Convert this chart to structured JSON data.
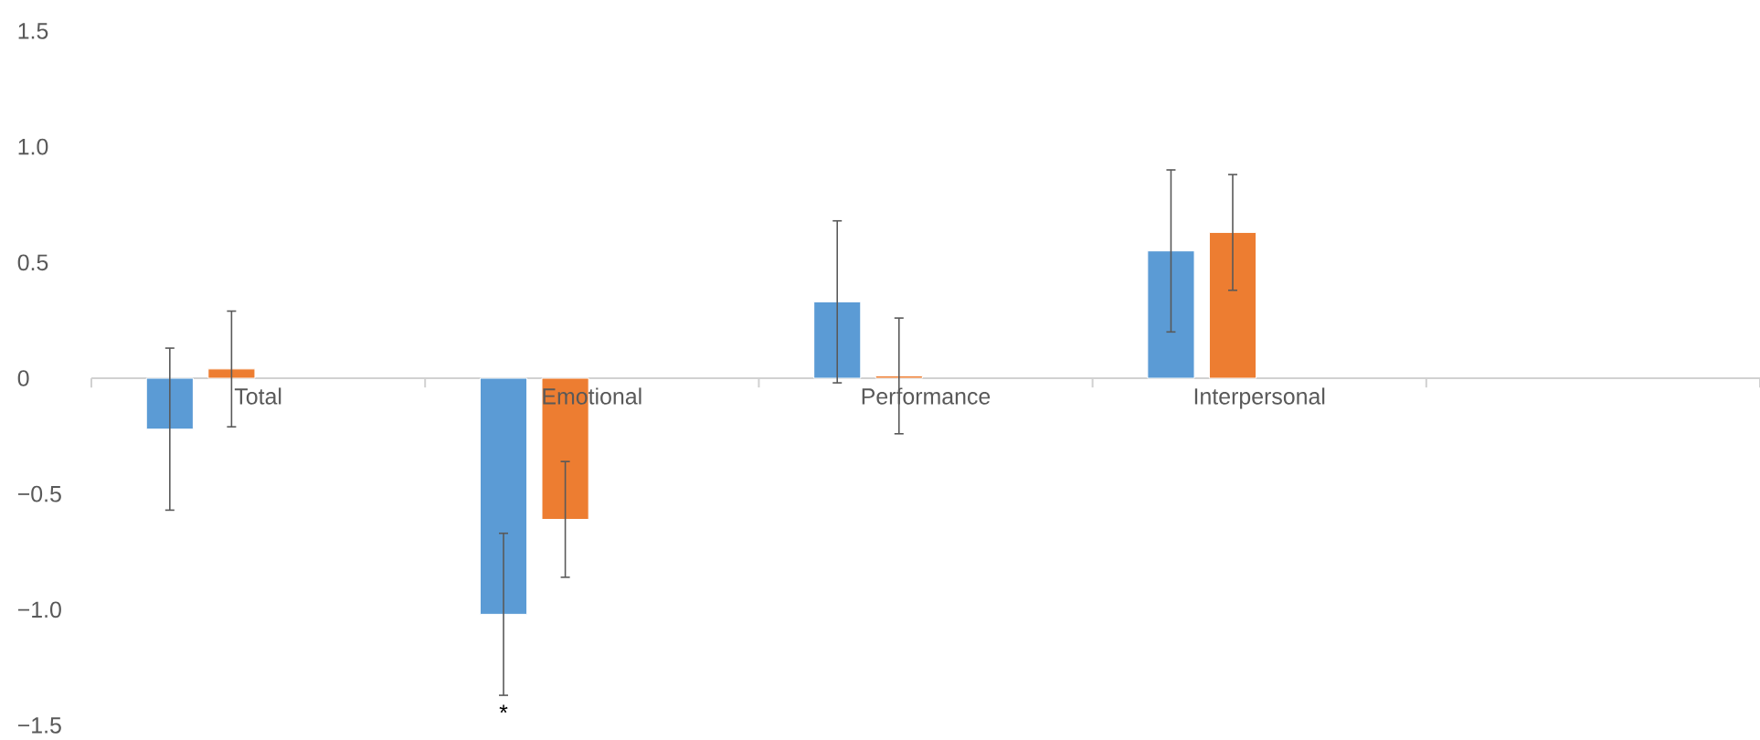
{
  "chart_data": {
    "type": "bar",
    "categories": [
      "Total",
      "Emotional",
      "Performance",
      "Interpersonal",
      null
    ],
    "series": [
      {
        "color": "#5b9bd5",
        "values": [
          -0.22,
          -1.02,
          0.33,
          0.55,
          null
        ],
        "errors": [
          0.35,
          0.35,
          0.35,
          0.35,
          null
        ]
      },
      {
        "color": "#ed7d31",
        "values": [
          0.04,
          -0.61,
          0.01,
          0.63,
          null
        ],
        "errors": [
          0.25,
          0.25,
          0.25,
          0.25,
          null
        ]
      }
    ],
    "ylim": [
      -1.5,
      1.5
    ],
    "yticks": [
      {
        "value": -1.5,
        "label": "−1.5"
      },
      {
        "value": -1.0,
        "label": "−1.0"
      },
      {
        "value": -0.5,
        "label": "−0.5"
      },
      0,
      0.5,
      {
        "value": 1.0,
        "label": "1.0"
      },
      1.5
    ],
    "annotations": [
      "*"
    ]
  }
}
